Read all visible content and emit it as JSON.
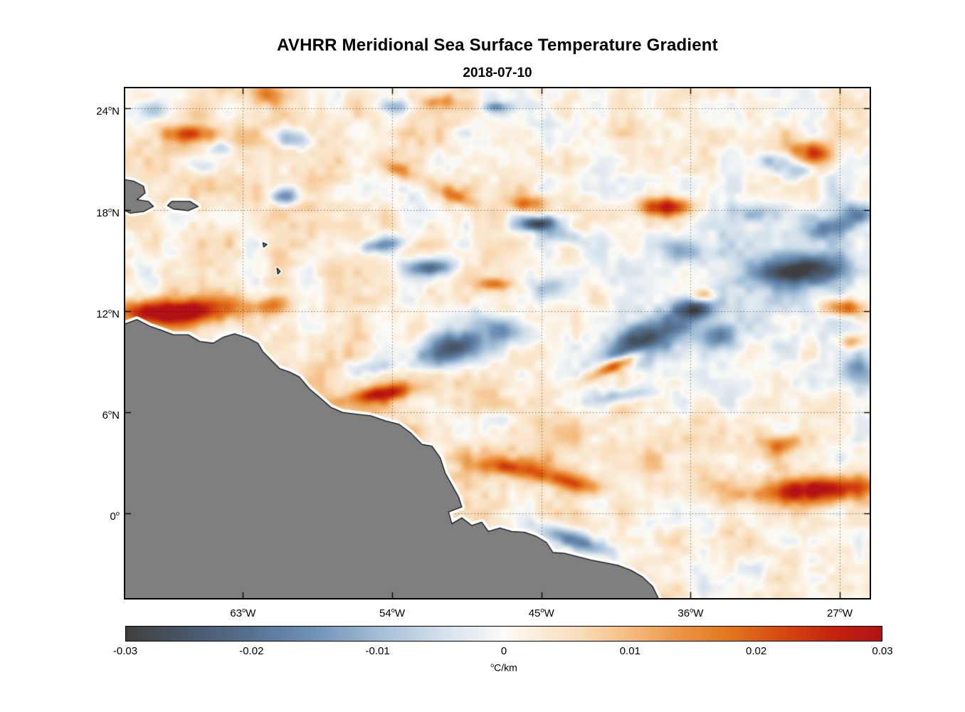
{
  "figure": {
    "title": "AVHRR Meridional Sea Surface Temperature Gradient",
    "subtitle": "2018-07-10",
    "background_color": "#ffffff"
  },
  "chart_data": {
    "type": "heatmap",
    "title": "AVHRR Meridional Sea Surface Temperature Gradient",
    "subtitle": "2018-07-10",
    "grid": {
      "style": "dotted",
      "color": "#000000",
      "alpha": 0.5
    },
    "extent": {
      "lon_min": -70.1,
      "lon_max": -25.2,
      "lat_min": -5.0,
      "lat_max": 25.2
    },
    "x_axis": {
      "ticks": [
        {
          "value": -63,
          "label": "63^oW"
        },
        {
          "value": -54,
          "label": "54^oW"
        },
        {
          "value": -45,
          "label": "45^oW"
        },
        {
          "value": -36,
          "label": "36^oW"
        },
        {
          "value": -27,
          "label": "27^oW"
        }
      ]
    },
    "y_axis": {
      "ticks": [
        {
          "value": 24,
          "label": "24^oN"
        },
        {
          "value": 18,
          "label": "18^oN"
        },
        {
          "value": 12,
          "label": "12^oN"
        },
        {
          "value": 6,
          "label": "6^oN"
        },
        {
          "value": 0,
          "label": "0^o"
        }
      ]
    },
    "colorbar": {
      "min": -0.03,
      "max": 0.03,
      "label": "^oC/km",
      "ticks": [
        {
          "value": -0.03,
          "label": "-0.03"
        },
        {
          "value": -0.02,
          "label": "-0.02"
        },
        {
          "value": -0.01,
          "label": "-0.01"
        },
        {
          "value": 0,
          "label": "0"
        },
        {
          "value": 0.01,
          "label": "0.01"
        },
        {
          "value": 0.02,
          "label": "0.02"
        },
        {
          "value": 0.03,
          "label": "0.03"
        }
      ],
      "stops": [
        {
          "v": -0.03,
          "c": "#3f3f3f"
        },
        {
          "v": -0.025,
          "c": "#49586b"
        },
        {
          "v": -0.02,
          "c": "#567292"
        },
        {
          "v": -0.015,
          "c": "#7093b6"
        },
        {
          "v": -0.01,
          "c": "#a2bdd6"
        },
        {
          "v": -0.005,
          "c": "#d3e0eb"
        },
        {
          "v": -0.0015,
          "c": "#eef2f4"
        },
        {
          "v": 0.0,
          "c": "#fcfbf7"
        },
        {
          "v": 0.002,
          "c": "#fbf0e0"
        },
        {
          "v": 0.006,
          "c": "#f9ddbb"
        },
        {
          "v": 0.01,
          "c": "#f4bc80"
        },
        {
          "v": 0.014,
          "c": "#eb9544"
        },
        {
          "v": 0.018,
          "c": "#e2751c"
        },
        {
          "v": 0.022,
          "c": "#d54a12"
        },
        {
          "v": 0.026,
          "c": "#c5240e"
        },
        {
          "v": 0.03,
          "c": "#b01217"
        }
      ]
    },
    "field_feature_fields": [
      "lon",
      "lat",
      "amp_degC_per_km",
      "sigma_lon_deg",
      "sigma_lat_deg",
      "rotation_deg"
    ],
    "field_features": [
      [
        -66.5,
        11.9,
        0.03,
        2.2,
        0.55,
        5
      ],
      [
        -69.3,
        12.1,
        0.016,
        1.1,
        0.45,
        0
      ],
      [
        -66.3,
        22.5,
        0.016,
        0.9,
        0.35,
        0
      ],
      [
        -61.5,
        24.8,
        0.014,
        0.8,
        0.4,
        0
      ],
      [
        -53.6,
        20.4,
        0.01,
        1.2,
        0.35,
        -25
      ],
      [
        -50.1,
        18.8,
        0.011,
        1.0,
        0.3,
        -20
      ],
      [
        -45.9,
        18.4,
        0.017,
        0.7,
        0.35,
        0
      ],
      [
        -37.5,
        18.2,
        0.026,
        1.1,
        0.4,
        0
      ],
      [
        -28.6,
        21.4,
        0.021,
        1.0,
        0.45,
        -15
      ],
      [
        -35.2,
        12.9,
        0.02,
        0.55,
        0.3,
        0
      ],
      [
        -26.8,
        12.2,
        0.024,
        0.9,
        0.4,
        0
      ],
      [
        -47.8,
        13.6,
        0.015,
        0.7,
        0.25,
        0
      ],
      [
        -40.5,
        8.8,
        0.026,
        1.3,
        0.28,
        25
      ],
      [
        -54.6,
        7.1,
        0.022,
        1.4,
        0.35,
        10
      ],
      [
        -46.5,
        2.7,
        0.018,
        1.6,
        0.4,
        -8
      ],
      [
        -43.2,
        1.8,
        0.016,
        1.3,
        0.35,
        -10
      ],
      [
        -28.3,
        1.4,
        0.03,
        2.6,
        0.55,
        3
      ],
      [
        -30.6,
        4.1,
        0.015,
        1.0,
        0.4,
        10
      ],
      [
        -51.2,
        24.4,
        0.011,
        0.7,
        0.3,
        0
      ],
      [
        -26.3,
        10.2,
        0.014,
        0.6,
        0.3,
        0
      ],
      [
        -61.5,
        12.3,
        0.012,
        0.8,
        0.35,
        0
      ],
      [
        -63.0,
        21.0,
        0.004,
        6.0,
        3.0,
        0
      ],
      [
        -44.0,
        3.5,
        0.005,
        8.0,
        2.5,
        0
      ],
      [
        -60.0,
        7.0,
        0.003,
        4.0,
        3.0,
        0
      ],
      [
        -60.2,
        22.3,
        -0.018,
        0.9,
        0.45,
        -10
      ],
      [
        -65.3,
        20.7,
        -0.01,
        0.8,
        0.4,
        0
      ],
      [
        -64.4,
        21.7,
        -0.011,
        0.6,
        0.3,
        0
      ],
      [
        -68.4,
        23.8,
        -0.009,
        0.7,
        0.35,
        0
      ],
      [
        -60.4,
        18.8,
        -0.02,
        0.55,
        0.4,
        0
      ],
      [
        -54.6,
        15.9,
        -0.016,
        1.1,
        0.3,
        10
      ],
      [
        -51.6,
        14.6,
        -0.022,
        1.0,
        0.35,
        5
      ],
      [
        -45.2,
        17.2,
        -0.03,
        0.85,
        0.3,
        5
      ],
      [
        -43.6,
        16.5,
        -0.014,
        0.8,
        0.35,
        -15
      ],
      [
        -50.5,
        9.8,
        -0.024,
        1.8,
        0.7,
        15
      ],
      [
        -47.5,
        11.0,
        -0.015,
        1.4,
        0.5,
        -20
      ],
      [
        -38.9,
        10.2,
        -0.027,
        1.7,
        0.7,
        20
      ],
      [
        -35.9,
        12.1,
        -0.024,
        0.9,
        0.5,
        0
      ],
      [
        -34.4,
        10.5,
        -0.017,
        0.8,
        0.5,
        0
      ],
      [
        -29.3,
        14.4,
        -0.026,
        1.8,
        0.6,
        5
      ],
      [
        -27.8,
        16.9,
        -0.015,
        1.2,
        0.5,
        10
      ],
      [
        -25.8,
        17.8,
        -0.017,
        0.7,
        0.5,
        0
      ],
      [
        -32.0,
        17.8,
        -0.011,
        0.9,
        0.4,
        0
      ],
      [
        -40.5,
        6.9,
        -0.012,
        1.2,
        0.3,
        10
      ],
      [
        -47.7,
        5.6,
        -0.009,
        0.9,
        0.35,
        0
      ],
      [
        -43.0,
        -1.6,
        -0.02,
        1.6,
        0.4,
        -18
      ],
      [
        -53.8,
        24.1,
        -0.011,
        0.6,
        0.3,
        0
      ],
      [
        -47.7,
        24.1,
        -0.017,
        0.55,
        0.22,
        0
      ],
      [
        -31.0,
        20.9,
        -0.013,
        0.8,
        0.4,
        0
      ],
      [
        -29.6,
        20.3,
        -0.012,
        0.7,
        0.35,
        0
      ],
      [
        -55.4,
        8.7,
        -0.01,
        0.9,
        0.3,
        0
      ],
      [
        -36.5,
        15.5,
        -0.011,
        1.0,
        0.5,
        0
      ],
      [
        -25.9,
        8.4,
        -0.012,
        0.8,
        0.6,
        0
      ],
      [
        -44.5,
        13.3,
        -0.011,
        0.8,
        0.4,
        0
      ],
      [
        -33.0,
        12.0,
        -0.004,
        6.0,
        4.0,
        0
      ],
      [
        -29.0,
        15.0,
        -0.003,
        5.0,
        3.0,
        0
      ]
    ],
    "texture": {
      "seed": 7,
      "bias": 0.0018,
      "octaves": [
        {
          "scale": 1.6,
          "amp": 0.0045
        },
        {
          "scale": 0.55,
          "amp": 0.0028
        }
      ]
    },
    "land": {
      "fill": "#7f7f7f",
      "outline": "#111111",
      "halo": "#ffffff",
      "polygons": {
        "south_america": [
          [
            -70.2,
            11.2
          ],
          [
            -69.4,
            11.5
          ],
          [
            -68.6,
            11.1
          ],
          [
            -68.0,
            10.9
          ],
          [
            -67.2,
            10.6
          ],
          [
            -66.3,
            10.6
          ],
          [
            -65.6,
            10.2
          ],
          [
            -64.8,
            10.1
          ],
          [
            -64.2,
            10.45
          ],
          [
            -63.5,
            10.65
          ],
          [
            -62.7,
            10.4
          ],
          [
            -62.1,
            10.1
          ],
          [
            -61.8,
            9.6
          ],
          [
            -61.3,
            9.1
          ],
          [
            -60.8,
            8.6
          ],
          [
            -60.2,
            8.4
          ],
          [
            -59.6,
            8.1
          ],
          [
            -59.0,
            7.4
          ],
          [
            -58.4,
            6.9
          ],
          [
            -57.7,
            6.3
          ],
          [
            -57.0,
            6.0
          ],
          [
            -56.2,
            5.9
          ],
          [
            -55.3,
            5.8
          ],
          [
            -54.4,
            5.5
          ],
          [
            -53.6,
            5.3
          ],
          [
            -52.9,
            4.8
          ],
          [
            -52.2,
            4.1
          ],
          [
            -51.6,
            4.0
          ],
          [
            -51.1,
            3.3
          ],
          [
            -50.8,
            2.4
          ],
          [
            -50.4,
            1.7
          ],
          [
            -50.0,
            1.0
          ],
          [
            -49.8,
            0.4
          ],
          [
            -50.6,
            0.1
          ],
          [
            -50.4,
            -0.6
          ],
          [
            -49.8,
            -0.25
          ],
          [
            -49.2,
            -0.7
          ],
          [
            -48.6,
            -0.5
          ],
          [
            -48.2,
            -1.05
          ],
          [
            -47.5,
            -0.85
          ],
          [
            -46.8,
            -1.05
          ],
          [
            -46.0,
            -1.1
          ],
          [
            -45.3,
            -1.35
          ],
          [
            -44.7,
            -1.7
          ],
          [
            -44.3,
            -2.3
          ],
          [
            -43.6,
            -2.35
          ],
          [
            -42.8,
            -2.55
          ],
          [
            -42.0,
            -2.75
          ],
          [
            -41.2,
            -2.9
          ],
          [
            -40.4,
            -3.05
          ],
          [
            -39.6,
            -3.35
          ],
          [
            -38.9,
            -3.75
          ],
          [
            -38.3,
            -4.3
          ],
          [
            -37.9,
            -5.1
          ],
          [
            -70.2,
            -5.1
          ]
        ],
        "hispaniola": [
          [
            -70.2,
            19.8
          ],
          [
            -69.6,
            19.7
          ],
          [
            -69.0,
            19.4
          ],
          [
            -68.9,
            19.0
          ],
          [
            -69.4,
            18.6
          ],
          [
            -68.7,
            18.5
          ],
          [
            -68.4,
            18.2
          ],
          [
            -69.0,
            17.9
          ],
          [
            -69.8,
            17.8
          ],
          [
            -70.2,
            18.0
          ]
        ],
        "puerto_rico": [
          [
            -67.3,
            18.5
          ],
          [
            -66.2,
            18.5
          ],
          [
            -65.7,
            18.2
          ],
          [
            -66.3,
            17.95
          ],
          [
            -67.2,
            18.05
          ],
          [
            -67.55,
            18.25
          ]
        ],
        "islet_1": [
          [
            -61.8,
            16.05
          ],
          [
            -61.55,
            15.95
          ],
          [
            -61.75,
            15.8
          ]
        ],
        "islet_2": [
          [
            -60.95,
            14.55
          ],
          [
            -60.75,
            14.35
          ],
          [
            -60.9,
            14.2
          ]
        ]
      }
    }
  }
}
